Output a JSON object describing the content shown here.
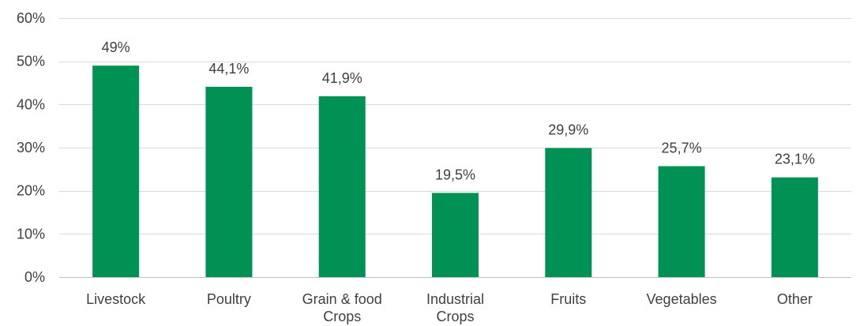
{
  "chart_data": {
    "type": "bar",
    "categories": [
      [
        "Livestock"
      ],
      [
        "Poultry"
      ],
      [
        "Grain & food",
        "Crops"
      ],
      [
        "Industrial",
        "Crops"
      ],
      [
        "Fruits"
      ],
      [
        "Vegetables"
      ],
      [
        "Other"
      ]
    ],
    "values": [
      49,
      44.1,
      41.9,
      19.5,
      29.9,
      25.7,
      23.1
    ],
    "data_labels": [
      "49%",
      "44,1%",
      "41,9%",
      "19,5%",
      "29,9%",
      "25,7%",
      "23,1%"
    ],
    "ylim": [
      0,
      60
    ],
    "yticks": [
      0,
      10,
      20,
      30,
      40,
      50,
      60
    ],
    "ytick_labels": [
      "0%",
      "10%",
      "20%",
      "30%",
      "40%",
      "50%",
      "60%"
    ],
    "grid": true,
    "colors": {
      "bar": "#009155",
      "grid": "#d9d9d9",
      "axis": "#bfbfbf",
      "text": "#404040"
    }
  }
}
